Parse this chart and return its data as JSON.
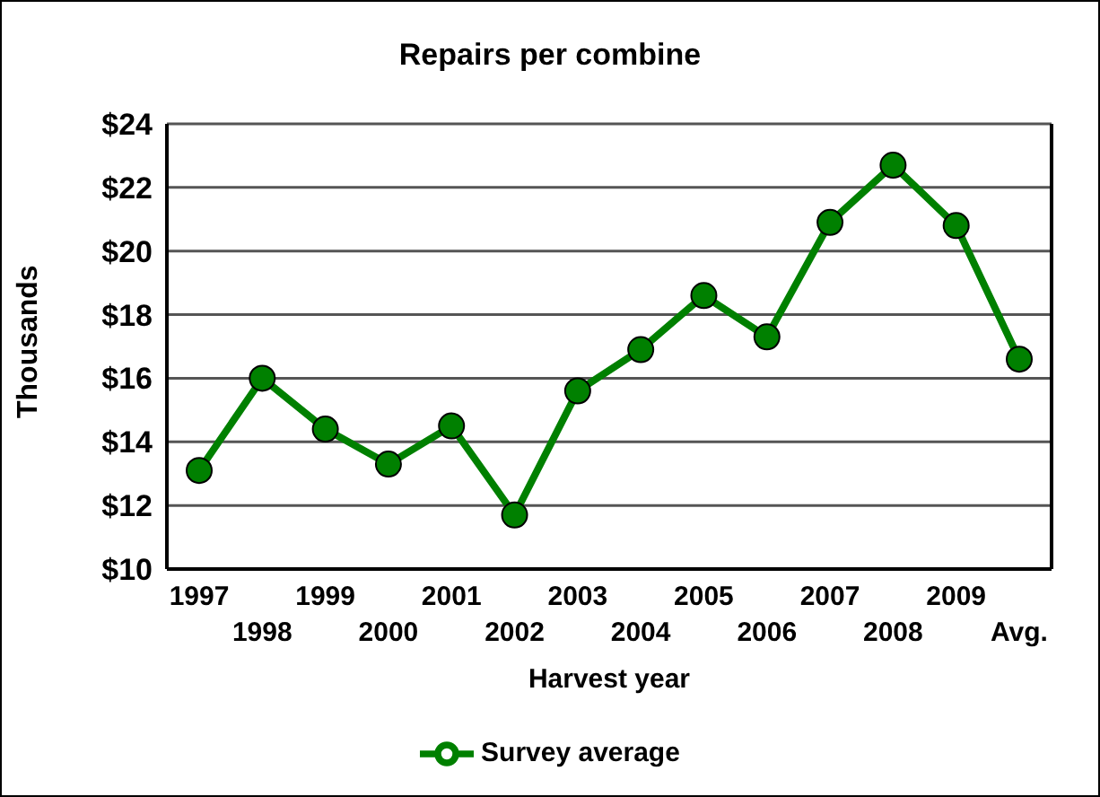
{
  "chart_data": {
    "type": "line",
    "title": "Repairs per combine",
    "xlabel": "Harvest year",
    "ylabel": "Thousands",
    "categories": [
      "1997",
      "1998",
      "1999",
      "2000",
      "2001",
      "2002",
      "2003",
      "2004",
      "2005",
      "2006",
      "2007",
      "2008",
      "2009",
      "Avg."
    ],
    "series": [
      {
        "name": "Survey average",
        "color": "#008000",
        "values": [
          13.1,
          16.0,
          14.4,
          13.3,
          14.5,
          11.7,
          15.6,
          16.9,
          18.6,
          17.3,
          20.9,
          22.7,
          20.8,
          16.6
        ]
      }
    ],
    "ylim": [
      10,
      24
    ],
    "yticks": [
      {
        "value": 10,
        "label": "$10"
      },
      {
        "value": 12,
        "label": "$12"
      },
      {
        "value": 14,
        "label": "$14"
      },
      {
        "value": 16,
        "label": "$16"
      },
      {
        "value": 18,
        "label": "$18"
      },
      {
        "value": 20,
        "label": "$20"
      },
      {
        "value": 22,
        "label": "$22"
      },
      {
        "value": 24,
        "label": "$24"
      }
    ],
    "grid": "y",
    "legend": "bottom",
    "marker": "circle",
    "line_style": "solid"
  }
}
